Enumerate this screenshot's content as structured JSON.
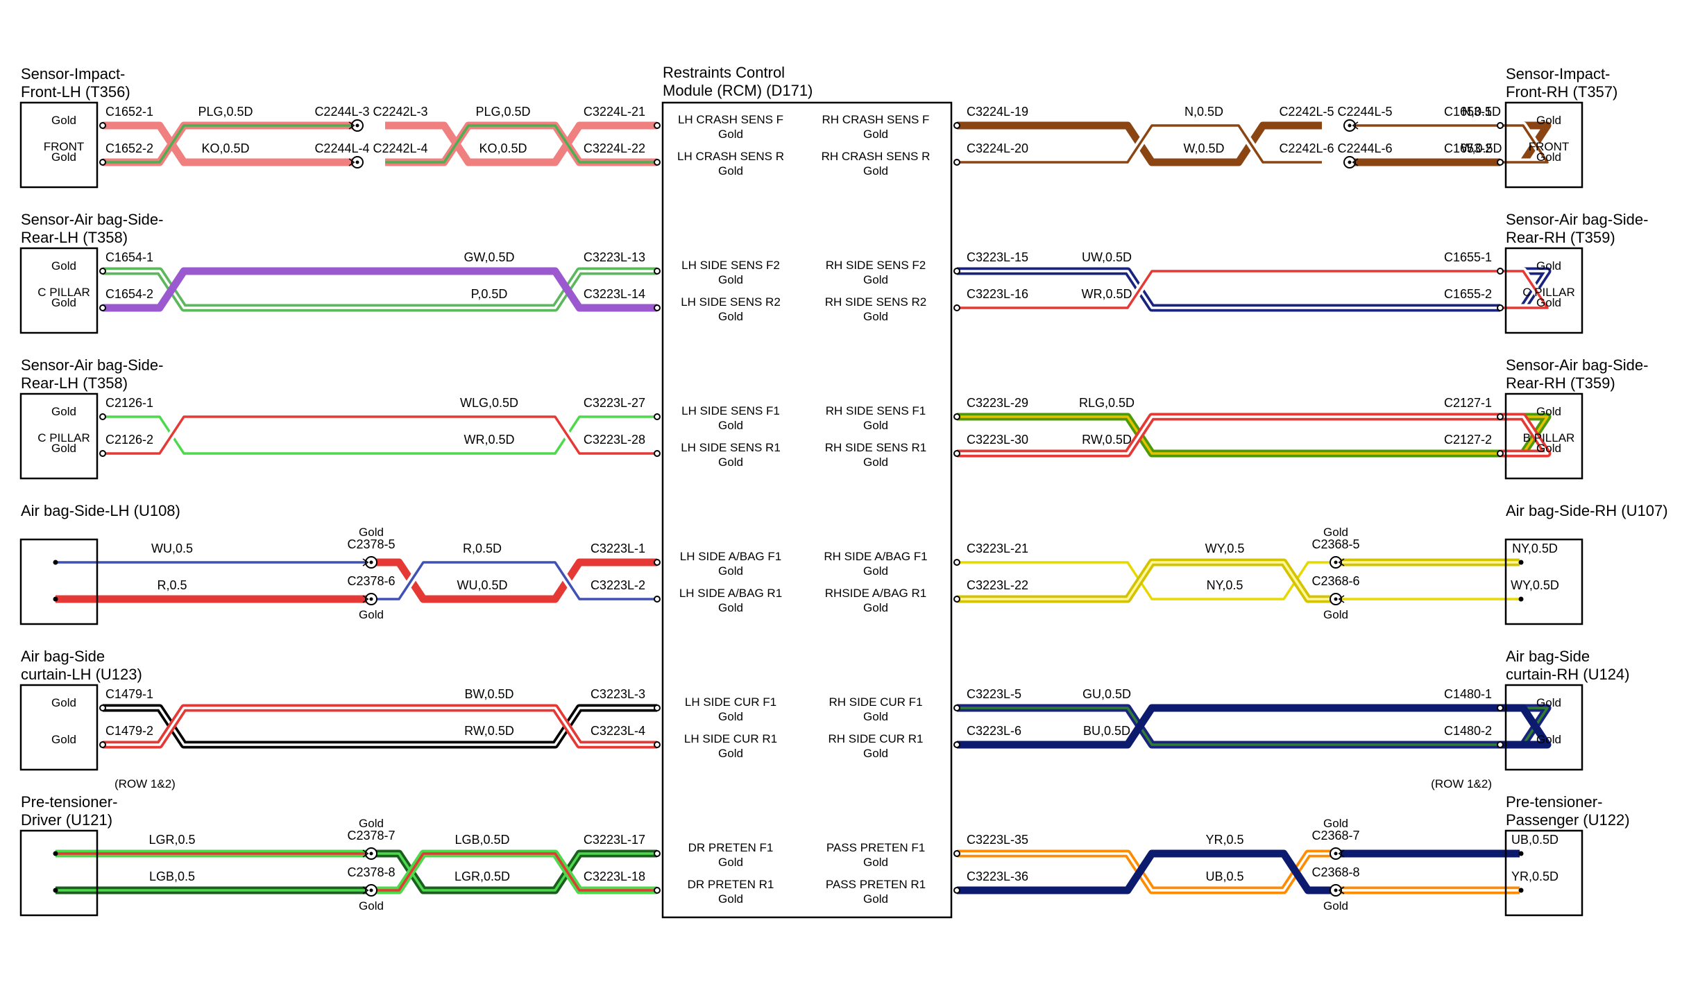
{
  "colors": {
    "PLG": [
      "#f08080",
      "#f08080"
    ],
    "KO": [
      "#f08080",
      "#4caf50"
    ],
    "N": [
      "#8b4513",
      "#8b4513"
    ],
    "W": [
      "#ffffff",
      "#8b4513"
    ],
    "GW": [
      "#5cb85c",
      "#ffffff"
    ],
    "P": [
      "#9b59d0",
      "#9b59d0"
    ],
    "UW": [
      "#1a237e",
      "#ffffff"
    ],
    "WR": [
      "#ffffff",
      "#e53935"
    ],
    "WLG": [
      "#ffffff",
      "#4cd94c"
    ],
    "RLG": [
      "#4e9a06",
      "#e5c100"
    ],
    "RW": [
      "#e53935",
      "#ffffff"
    ],
    "WU": [
      "#ffffff",
      "#3f51b5"
    ],
    "R": [
      "#e53935",
      "#e53935"
    ],
    "NY": [
      "#d4c400",
      "#fff799"
    ],
    "WY": [
      "#ffffff",
      "#e6d800"
    ],
    "BW": [
      "#000000",
      "#ffffff"
    ],
    "GU": [
      "#1a237e",
      "#2e7d32"
    ],
    "BU": [
      "#0d1b6e",
      "#0d1b6e"
    ],
    "LGR": [
      "#4cd94c",
      "#e53935"
    ],
    "LGB": [
      "#1b5e20",
      "#4cd94c"
    ],
    "UB": [
      "#0d1b6e",
      "#0d1b6e"
    ],
    "YR": [
      "#ff8c00",
      "#ffffff"
    ]
  },
  "rcm": {
    "title_line1": "Restraints Control",
    "title_line2": "Module (RCM) (D171)",
    "pins": [
      [
        "LH CRASH SENS F",
        "Gold",
        "RH CRASH SENS F",
        "Gold"
      ],
      [
        "LH CRASH SENS R",
        "Gold",
        "RH CRASH SENS R",
        "Gold"
      ],
      [
        "LH SIDE SENS F2",
        "Gold",
        "RH SIDE SENS F2",
        "Gold"
      ],
      [
        "LH SIDE SENS R2",
        "Gold",
        "RH SIDE SENS R2",
        "Gold"
      ],
      [
        "LH SIDE SENS F1",
        "Gold",
        "RH SIDE SENS F1",
        "Gold"
      ],
      [
        "LH SIDE SENS R1",
        "Gold",
        "RH SIDE SENS R1",
        "Gold"
      ],
      [
        "LH SIDE A/BAG F1",
        "Gold",
        "RH SIDE A/BAG F1",
        "Gold"
      ],
      [
        "LH SIDE A/BAG R1",
        "Gold",
        "RHSIDE A/BAG R1",
        "Gold"
      ],
      [
        "LH SIDE CUR F1",
        "Gold",
        "RH SIDE CUR F1",
        "Gold"
      ],
      [
        "LH SIDE CUR R1",
        "Gold",
        "RH SIDE CUR R1",
        "Gold"
      ],
      [
        "DR PRETEN F1",
        "Gold",
        "PASS PRETEN F1",
        "Gold"
      ],
      [
        "DR PRETEN R1",
        "Gold",
        "PASS PRETEN R1",
        "Gold"
      ]
    ]
  },
  "rows": [
    {
      "left": {
        "title": [
          "Sensor-Impact-",
          "Front-LH (T356)"
        ],
        "box_text": [
          "Gold",
          "FRONT",
          "Gold"
        ],
        "pins": [
          "C1652-1",
          "C1652-2"
        ],
        "note": "",
        "wires": [
          [
            "PLG,0.5D",
            "KO,0.5D"
          ],
          [
            "PLG,0.5D",
            "KO,0.5D"
          ]
        ],
        "wire_codes": [
          [
            "PLG",
            "KO"
          ],
          [
            "PLG",
            "KO"
          ]
        ],
        "inline": {
          "top": "C2244L-3 C2242L-3",
          "bottom": "C2244L-4 C2242L-4",
          "gold_top": "",
          "gold_bottom": ""
        },
        "rcm_pins": [
          "C3224L-21",
          "C3224L-22"
        ]
      },
      "right": {
        "title": [
          "Sensor-Impact-",
          "Front-RH (T357)"
        ],
        "box_text": [
          "Gold",
          "FRONT",
          "Gold"
        ],
        "pins": [
          "C1653-1",
          "C1653-2"
        ],
        "note": "",
        "wires": [
          [
            "N,0.5D",
            "W,0.5D"
          ],
          [
            "N,0.5D",
            "W,0.5D"
          ]
        ],
        "wire_codes": [
          [
            "N",
            "W"
          ],
          [
            "N",
            "W"
          ]
        ],
        "inline": {
          "top": "C2242L-5 C2244L-5",
          "bottom": "C2242L-6 C2244L-6",
          "gold_top": "",
          "gold_bottom": ""
        },
        "rcm_pins": [
          "C3224L-19",
          "C3224L-20"
        ]
      }
    },
    {
      "left": {
        "title": [
          "Sensor-Air bag-Side-",
          "Rear-LH (T358)"
        ],
        "box_text": [
          "Gold",
          "C PILLAR",
          "Gold"
        ],
        "pins": [
          "C1654-1",
          "C1654-2"
        ],
        "note": "",
        "wires": [
          [
            "GW,0.5D",
            "P,0.5D"
          ]
        ],
        "wire_codes": [
          [
            "GW",
            "P"
          ]
        ],
        "inline": null,
        "rcm_pins": [
          "C3223L-13",
          "C3223L-14"
        ]
      },
      "right": {
        "title": [
          "Sensor-Air bag-Side-",
          "Rear-RH (T359)"
        ],
        "box_text": [
          "Gold",
          "C PILLAR",
          "Gold"
        ],
        "pins": [
          "C1655-1",
          "C1655-2"
        ],
        "note": "",
        "wires": [
          [
            "UW,0.5D",
            "WR,0.5D"
          ]
        ],
        "wire_codes": [
          [
            "UW",
            "WR"
          ]
        ],
        "inline": null,
        "rcm_pins": [
          "C3223L-15",
          "C3223L-16"
        ]
      }
    },
    {
      "left": {
        "title": [
          "Sensor-Air bag-Side-",
          "Rear-LH (T358)"
        ],
        "box_text": [
          "Gold",
          "C PILLAR",
          "Gold"
        ],
        "pins": [
          "C2126-1",
          "C2126-2"
        ],
        "note": "",
        "wires": [
          [
            "WLG,0.5D",
            "WR,0.5D"
          ]
        ],
        "wire_codes": [
          [
            "WLG",
            "WR"
          ]
        ],
        "inline": null,
        "rcm_pins": [
          "C3223L-27",
          "C3223L-28"
        ]
      },
      "right": {
        "title": [
          "Sensor-Air bag-Side-",
          "Rear-RH (T359)"
        ],
        "box_text": [
          "Gold",
          "B PILLAR",
          "Gold"
        ],
        "pins": [
          "C2127-1",
          "C2127-2"
        ],
        "note": "",
        "wires": [
          [
            "RLG,0.5D",
            "RW,0.5D"
          ]
        ],
        "wire_codes": [
          [
            "RLG",
            "RW"
          ]
        ],
        "inline": null,
        "rcm_pins": [
          "C3223L-29",
          "C3223L-30"
        ]
      }
    },
    {
      "left": {
        "title": [
          "Air bag-Side-LH (U108)",
          ""
        ],
        "box_text": [
          "",
          "",
          ""
        ],
        "pins": [
          "",
          ""
        ],
        "note": "",
        "wires": [
          [
            "WU,0.5",
            "R,0.5"
          ],
          [
            "R,0.5D",
            "WU,0.5D"
          ]
        ],
        "wire_codes": [
          [
            "WU",
            "R"
          ],
          [
            "R",
            "WU"
          ]
        ],
        "inline": {
          "top": "C2378-5",
          "bottom": "C2378-6",
          "gold_top": "Gold",
          "gold_bottom": "Gold"
        },
        "rcm_pins": [
          "C3223L-1",
          "C3223L-2"
        ]
      },
      "right": {
        "title": [
          "Air bag-Side-RH (U107)",
          ""
        ],
        "box_text": [
          "",
          "",
          ""
        ],
        "pins": [
          "",
          ""
        ],
        "note": "",
        "wires": [
          [
            "NY,0.5D",
            "WY,0.5D"
          ],
          [
            "WY,0.5",
            "NY,0.5"
          ]
        ],
        "wire_codes": [
          [
            "NY",
            "WY"
          ],
          [
            "WY",
            "NY"
          ]
        ],
        "inline": {
          "top": "C2368-5",
          "bottom": "C2368-6",
          "gold_top": "Gold",
          "gold_bottom": "Gold"
        },
        "rcm_pins": [
          "C3223L-21",
          "C3223L-22"
        ]
      }
    },
    {
      "left": {
        "title": [
          "Air bag-Side",
          "curtain-LH (U123)"
        ],
        "box_text": [
          "Gold",
          "",
          "Gold"
        ],
        "pins": [
          "C1479-1",
          "C1479-2"
        ],
        "note": "(ROW 1&2)",
        "wires": [
          [
            "BW,0.5D",
            "RW,0.5D"
          ]
        ],
        "wire_codes": [
          [
            "BW",
            "RW"
          ]
        ],
        "inline": null,
        "rcm_pins": [
          "C3223L-3",
          "C3223L-4"
        ]
      },
      "right": {
        "title": [
          "Air bag-Side",
          "curtain-RH (U124)"
        ],
        "box_text": [
          "Gold",
          "",
          "Gold"
        ],
        "pins": [
          "C1480-1",
          "C1480-2"
        ],
        "note": "(ROW 1&2)",
        "wires": [
          [
            "GU,0.5D",
            "BU,0.5D"
          ]
        ],
        "wire_codes": [
          [
            "GU",
            "BU"
          ]
        ],
        "inline": null,
        "rcm_pins": [
          "C3223L-5",
          "C3223L-6"
        ]
      }
    },
    {
      "left": {
        "title": [
          "Pre-tensioner-",
          "Driver (U121)"
        ],
        "box_text": [
          "",
          "",
          ""
        ],
        "pins": [
          "",
          ""
        ],
        "note": "",
        "wires": [
          [
            "LGR,0.5",
            "LGB,0.5"
          ],
          [
            "LGB,0.5D",
            "LGR,0.5D"
          ]
        ],
        "wire_codes": [
          [
            "LGR",
            "LGB"
          ],
          [
            "LGB",
            "LGR"
          ]
        ],
        "inline": {
          "top": "C2378-7",
          "bottom": "C2378-8",
          "gold_top": "Gold",
          "gold_bottom": "Gold"
        },
        "rcm_pins": [
          "C3223L-17",
          "C3223L-18"
        ]
      },
      "right": {
        "title": [
          "Pre-tensioner-",
          "Passenger (U122)"
        ],
        "box_text": [
          "",
          "",
          ""
        ],
        "pins": [
          "",
          ""
        ],
        "note": "",
        "wires": [
          [
            "UB,0.5D",
            "YR,0.5D"
          ],
          [
            "YR,0.5",
            "UB,0.5"
          ]
        ],
        "wire_codes": [
          [
            "UB",
            "YR"
          ],
          [
            "YR",
            "UB"
          ]
        ],
        "inline": {
          "top": "C2368-7",
          "bottom": "C2368-8",
          "gold_top": "Gold",
          "gold_bottom": "Gold"
        },
        "rcm_pins": [
          "C3223L-35",
          "C3223L-36"
        ]
      }
    }
  ]
}
